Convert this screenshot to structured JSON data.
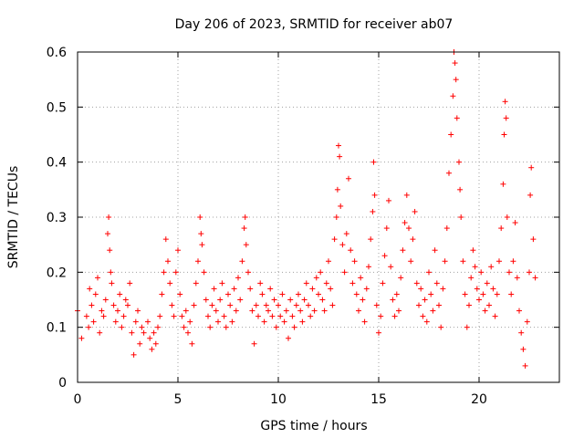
{
  "chart_data": {
    "type": "scatter",
    "title": "Day 206 of 2023, SRMTID for receiver ab07",
    "xlabel": "GPS time / hours",
    "ylabel": "SRMTID / TECUs",
    "xlim": [
      0,
      24
    ],
    "ylim": [
      0,
      0.6
    ],
    "x_ticks": [
      0,
      5,
      10,
      15,
      20
    ],
    "x_tick_labels": [
      "0",
      "5",
      "10",
      "15",
      "20"
    ],
    "y_ticks": [
      0,
      0.1,
      0.2,
      0.3,
      0.4,
      0.5,
      0.6
    ],
    "y_tick_labels": [
      "0",
      "0.1",
      "0.2",
      "0.3",
      "0.4",
      "0.5",
      "0.6"
    ],
    "grid": true,
    "marker": "plus",
    "color": "#ff0000",
    "series": [
      {
        "name": "SRMTID",
        "points": [
          [
            0.0,
            0.13
          ],
          [
            0.2,
            0.08
          ],
          [
            0.45,
            0.12
          ],
          [
            0.55,
            0.1
          ],
          [
            0.6,
            0.17
          ],
          [
            0.7,
            0.14
          ],
          [
            0.8,
            0.11
          ],
          [
            0.9,
            0.16
          ],
          [
            1.0,
            0.19
          ],
          [
            1.1,
            0.09
          ],
          [
            1.2,
            0.13
          ],
          [
            1.3,
            0.12
          ],
          [
            1.4,
            0.15
          ],
          [
            1.5,
            0.27
          ],
          [
            1.55,
            0.3
          ],
          [
            1.6,
            0.24
          ],
          [
            1.65,
            0.2
          ],
          [
            1.7,
            0.18
          ],
          [
            1.8,
            0.14
          ],
          [
            1.9,
            0.11
          ],
          [
            2.0,
            0.13
          ],
          [
            2.1,
            0.16
          ],
          [
            2.2,
            0.1
          ],
          [
            2.3,
            0.12
          ],
          [
            2.4,
            0.15
          ],
          [
            2.5,
            0.14
          ],
          [
            2.6,
            0.18
          ],
          [
            2.7,
            0.09
          ],
          [
            2.8,
            0.05
          ],
          [
            2.9,
            0.11
          ],
          [
            3.0,
            0.13
          ],
          [
            3.1,
            0.07
          ],
          [
            3.2,
            0.1
          ],
          [
            3.3,
            0.09
          ],
          [
            3.5,
            0.11
          ],
          [
            3.6,
            0.08
          ],
          [
            3.7,
            0.06
          ],
          [
            3.8,
            0.09
          ],
          [
            3.9,
            0.07
          ],
          [
            4.0,
            0.1
          ],
          [
            4.1,
            0.12
          ],
          [
            4.2,
            0.16
          ],
          [
            4.3,
            0.2
          ],
          [
            4.4,
            0.26
          ],
          [
            4.5,
            0.22
          ],
          [
            4.6,
            0.18
          ],
          [
            4.7,
            0.14
          ],
          [
            4.8,
            0.12
          ],
          [
            4.9,
            0.2
          ],
          [
            5.0,
            0.24
          ],
          [
            5.1,
            0.16
          ],
          [
            5.2,
            0.12
          ],
          [
            5.3,
            0.1
          ],
          [
            5.4,
            0.13
          ],
          [
            5.5,
            0.09
          ],
          [
            5.6,
            0.11
          ],
          [
            5.7,
            0.07
          ],
          [
            5.8,
            0.14
          ],
          [
            5.9,
            0.18
          ],
          [
            6.0,
            0.22
          ],
          [
            6.1,
            0.3
          ],
          [
            6.15,
            0.27
          ],
          [
            6.2,
            0.25
          ],
          [
            6.3,
            0.2
          ],
          [
            6.4,
            0.15
          ],
          [
            6.5,
            0.12
          ],
          [
            6.6,
            0.1
          ],
          [
            6.7,
            0.14
          ],
          [
            6.8,
            0.17
          ],
          [
            6.9,
            0.13
          ],
          [
            7.0,
            0.11
          ],
          [
            7.1,
            0.15
          ],
          [
            7.2,
            0.18
          ],
          [
            7.3,
            0.12
          ],
          [
            7.4,
            0.1
          ],
          [
            7.5,
            0.16
          ],
          [
            7.6,
            0.14
          ],
          [
            7.7,
            0.11
          ],
          [
            7.8,
            0.17
          ],
          [
            7.9,
            0.13
          ],
          [
            8.0,
            0.19
          ],
          [
            8.1,
            0.15
          ],
          [
            8.2,
            0.22
          ],
          [
            8.3,
            0.28
          ],
          [
            8.35,
            0.3
          ],
          [
            8.4,
            0.25
          ],
          [
            8.5,
            0.2
          ],
          [
            8.6,
            0.17
          ],
          [
            8.7,
            0.13
          ],
          [
            8.8,
            0.07
          ],
          [
            8.9,
            0.14
          ],
          [
            9.0,
            0.12
          ],
          [
            9.1,
            0.18
          ],
          [
            9.2,
            0.16
          ],
          [
            9.3,
            0.11
          ],
          [
            9.4,
            0.14
          ],
          [
            9.5,
            0.13
          ],
          [
            9.6,
            0.17
          ],
          [
            9.7,
            0.12
          ],
          [
            9.8,
            0.15
          ],
          [
            9.9,
            0.1
          ],
          [
            10.0,
            0.14
          ],
          [
            10.1,
            0.12
          ],
          [
            10.2,
            0.16
          ],
          [
            10.3,
            0.11
          ],
          [
            10.4,
            0.13
          ],
          [
            10.5,
            0.08
          ],
          [
            10.6,
            0.15
          ],
          [
            10.7,
            0.12
          ],
          [
            10.8,
            0.1
          ],
          [
            10.9,
            0.14
          ],
          [
            11.0,
            0.16
          ],
          [
            11.1,
            0.13
          ],
          [
            11.2,
            0.11
          ],
          [
            11.3,
            0.15
          ],
          [
            11.4,
            0.18
          ],
          [
            11.5,
            0.14
          ],
          [
            11.6,
            0.12
          ],
          [
            11.7,
            0.17
          ],
          [
            11.8,
            0.13
          ],
          [
            11.9,
            0.19
          ],
          [
            12.0,
            0.16
          ],
          [
            12.1,
            0.2
          ],
          [
            12.2,
            0.15
          ],
          [
            12.3,
            0.13
          ],
          [
            12.4,
            0.18
          ],
          [
            12.5,
            0.22
          ],
          [
            12.6,
            0.17
          ],
          [
            12.7,
            0.14
          ],
          [
            12.8,
            0.26
          ],
          [
            12.9,
            0.3
          ],
          [
            12.95,
            0.35
          ],
          [
            13.0,
            0.43
          ],
          [
            13.05,
            0.41
          ],
          [
            13.1,
            0.32
          ],
          [
            13.2,
            0.25
          ],
          [
            13.3,
            0.2
          ],
          [
            13.4,
            0.27
          ],
          [
            13.5,
            0.37
          ],
          [
            13.6,
            0.24
          ],
          [
            13.7,
            0.18
          ],
          [
            13.8,
            0.22
          ],
          [
            13.9,
            0.16
          ],
          [
            14.0,
            0.13
          ],
          [
            14.1,
            0.19
          ],
          [
            14.2,
            0.15
          ],
          [
            14.3,
            0.11
          ],
          [
            14.4,
            0.17
          ],
          [
            14.5,
            0.21
          ],
          [
            14.6,
            0.26
          ],
          [
            14.7,
            0.31
          ],
          [
            14.75,
            0.4
          ],
          [
            14.8,
            0.34
          ],
          [
            14.9,
            0.14
          ],
          [
            15.0,
            0.09
          ],
          [
            15.1,
            0.12
          ],
          [
            15.2,
            0.18
          ],
          [
            15.3,
            0.23
          ],
          [
            15.4,
            0.28
          ],
          [
            15.5,
            0.33
          ],
          [
            15.6,
            0.21
          ],
          [
            15.7,
            0.15
          ],
          [
            15.8,
            0.12
          ],
          [
            15.9,
            0.16
          ],
          [
            16.0,
            0.13
          ],
          [
            16.1,
            0.19
          ],
          [
            16.2,
            0.24
          ],
          [
            16.3,
            0.29
          ],
          [
            16.4,
            0.34
          ],
          [
            16.5,
            0.28
          ],
          [
            16.6,
            0.22
          ],
          [
            16.7,
            0.26
          ],
          [
            16.8,
            0.31
          ],
          [
            16.9,
            0.18
          ],
          [
            17.0,
            0.14
          ],
          [
            17.1,
            0.17
          ],
          [
            17.2,
            0.12
          ],
          [
            17.3,
            0.15
          ],
          [
            17.4,
            0.11
          ],
          [
            17.5,
            0.2
          ],
          [
            17.6,
            0.16
          ],
          [
            17.7,
            0.13
          ],
          [
            17.8,
            0.24
          ],
          [
            17.9,
            0.18
          ],
          [
            18.0,
            0.14
          ],
          [
            18.1,
            0.1
          ],
          [
            18.2,
            0.17
          ],
          [
            18.3,
            0.22
          ],
          [
            18.4,
            0.28
          ],
          [
            18.5,
            0.38
          ],
          [
            18.6,
            0.45
          ],
          [
            18.7,
            0.52
          ],
          [
            18.75,
            0.6
          ],
          [
            18.8,
            0.58
          ],
          [
            18.85,
            0.55
          ],
          [
            18.9,
            0.48
          ],
          [
            19.0,
            0.4
          ],
          [
            19.05,
            0.35
          ],
          [
            19.1,
            0.3
          ],
          [
            19.2,
            0.22
          ],
          [
            19.3,
            0.16
          ],
          [
            19.4,
            0.1
          ],
          [
            19.5,
            0.14
          ],
          [
            19.6,
            0.19
          ],
          [
            19.7,
            0.24
          ],
          [
            19.8,
            0.21
          ],
          [
            19.9,
            0.17
          ],
          [
            20.0,
            0.15
          ],
          [
            20.1,
            0.2
          ],
          [
            20.2,
            0.16
          ],
          [
            20.3,
            0.13
          ],
          [
            20.4,
            0.18
          ],
          [
            20.5,
            0.14
          ],
          [
            20.6,
            0.21
          ],
          [
            20.7,
            0.17
          ],
          [
            20.8,
            0.12
          ],
          [
            20.9,
            0.16
          ],
          [
            21.0,
            0.22
          ],
          [
            21.1,
            0.28
          ],
          [
            21.2,
            0.36
          ],
          [
            21.25,
            0.45
          ],
          [
            21.3,
            0.51
          ],
          [
            21.35,
            0.48
          ],
          [
            21.4,
            0.3
          ],
          [
            21.5,
            0.2
          ],
          [
            21.6,
            0.16
          ],
          [
            21.7,
            0.22
          ],
          [
            21.8,
            0.29
          ],
          [
            21.9,
            0.19
          ],
          [
            22.0,
            0.13
          ],
          [
            22.1,
            0.09
          ],
          [
            22.2,
            0.06
          ],
          [
            22.3,
            0.03
          ],
          [
            22.4,
            0.11
          ],
          [
            22.5,
            0.2
          ],
          [
            22.55,
            0.34
          ],
          [
            22.6,
            0.39
          ],
          [
            22.7,
            0.26
          ],
          [
            22.8,
            0.19
          ]
        ]
      }
    ]
  }
}
